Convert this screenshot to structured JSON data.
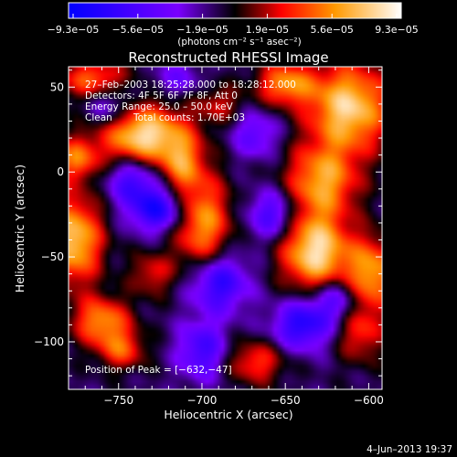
{
  "chart_data": {
    "type": "heatmap",
    "title": "Reconstructed RHESSI Image",
    "xlabel": "Heliocentric X (arcsec)",
    "ylabel": "Heliocentric Y (arcsec)",
    "xlim": [
      -780,
      -592
    ],
    "ylim": [
      -128,
      62
    ],
    "x_ticks": [
      -750,
      -700,
      -650,
      -600
    ],
    "y_ticks": [
      -100,
      -50,
      0,
      50
    ],
    "x_tick_labels": [
      "−750",
      "−700",
      "−650",
      "−600"
    ],
    "y_tick_labels": [
      "−100",
      "−50",
      "0",
      "50"
    ],
    "colorbar": {
      "range": [
        -9.3e-05,
        9.3e-05
      ],
      "tick_labels": [
        "−9.3e−05",
        "−5.6e−05",
        "−1.9e−05",
        "1.9e−05",
        "5.6e−05",
        "9.3e−05"
      ],
      "unit_label": "(photons cm⁻² s⁻¹ asec⁻²)"
    },
    "annotations": {
      "time_range": "27–Feb–2003 18:25:28.000 to 18:28:12.000",
      "detectors": "Detectors: 4F 5F 6F 7F 8F, Att 0",
      "energy_range": "Energy Range: 25.0 – 50.0 keV",
      "method": "Clean",
      "total_counts": "Total counts: 1.70E+03",
      "peak_position": "Position of Peak = [−632,−47]"
    },
    "peak": [
      -632,
      -47
    ],
    "sources": [
      {
        "x": -735,
        "y": 22,
        "sx": 18,
        "sy": 12,
        "a": 1.0
      },
      {
        "x": -777,
        "y": -40,
        "sx": 12,
        "sy": 18,
        "a": 0.9
      },
      {
        "x": -775,
        "y": 8,
        "sx": 9,
        "sy": 9,
        "a": 0.6
      },
      {
        "x": -700,
        "y": -30,
        "sx": 12,
        "sy": 20,
        "a": 0.75
      },
      {
        "x": -712,
        "y": 5,
        "sx": 9,
        "sy": 12,
        "a": 0.55
      },
      {
        "x": -632,
        "y": -47,
        "sx": 14,
        "sy": 16,
        "a": 1.0
      },
      {
        "x": -628,
        "y": -5,
        "sx": 15,
        "sy": 15,
        "a": 0.75
      },
      {
        "x": -612,
        "y": 38,
        "sx": 17,
        "sy": 18,
        "a": 0.95
      },
      {
        "x": -650,
        "y": 52,
        "sx": 12,
        "sy": 9,
        "a": 0.7
      },
      {
        "x": -598,
        "y": -60,
        "sx": 11,
        "sy": 15,
        "a": 0.75
      },
      {
        "x": -605,
        "y": -95,
        "sx": 10,
        "sy": 12,
        "a": 0.45
      },
      {
        "x": -760,
        "y": -88,
        "sx": 12,
        "sy": 10,
        "a": 0.7
      },
      {
        "x": -748,
        "y": -105,
        "sx": 10,
        "sy": 8,
        "a": 0.5
      },
      {
        "x": -765,
        "y": 55,
        "sx": 14,
        "sy": 8,
        "a": 0.6
      },
      {
        "x": -668,
        "y": -112,
        "sx": 12,
        "sy": 9,
        "a": 0.5
      },
      {
        "x": -730,
        "y": -60,
        "sx": 9,
        "sy": 9,
        "a": 0.4
      },
      {
        "x": -690,
        "y": 40,
        "sx": 10,
        "sy": 8,
        "a": 0.35
      },
      {
        "x": -727,
        "y": -22,
        "sx": 12,
        "sy": 9,
        "a": -0.75
      },
      {
        "x": -742,
        "y": -5,
        "sx": 10,
        "sy": 9,
        "a": -0.55
      },
      {
        "x": -690,
        "y": -65,
        "sx": 12,
        "sy": 12,
        "a": -0.7
      },
      {
        "x": -700,
        "y": -105,
        "sx": 10,
        "sy": 12,
        "a": -0.55
      },
      {
        "x": -658,
        "y": -25,
        "sx": 10,
        "sy": 10,
        "a": -0.55
      },
      {
        "x": -640,
        "y": -90,
        "sx": 12,
        "sy": 10,
        "a": -0.7
      },
      {
        "x": -620,
        "y": -75,
        "sx": 10,
        "sy": 9,
        "a": -0.5
      },
      {
        "x": -668,
        "y": 22,
        "sx": 10,
        "sy": 10,
        "a": -0.4
      },
      {
        "x": -755,
        "y": 38,
        "sx": 9,
        "sy": 9,
        "a": -0.4
      },
      {
        "x": -715,
        "y": 55,
        "sx": 10,
        "sy": 7,
        "a": -0.3
      }
    ],
    "background_level": -0.12
  },
  "footer": {
    "date": "4–Jun–2013 19:37"
  }
}
